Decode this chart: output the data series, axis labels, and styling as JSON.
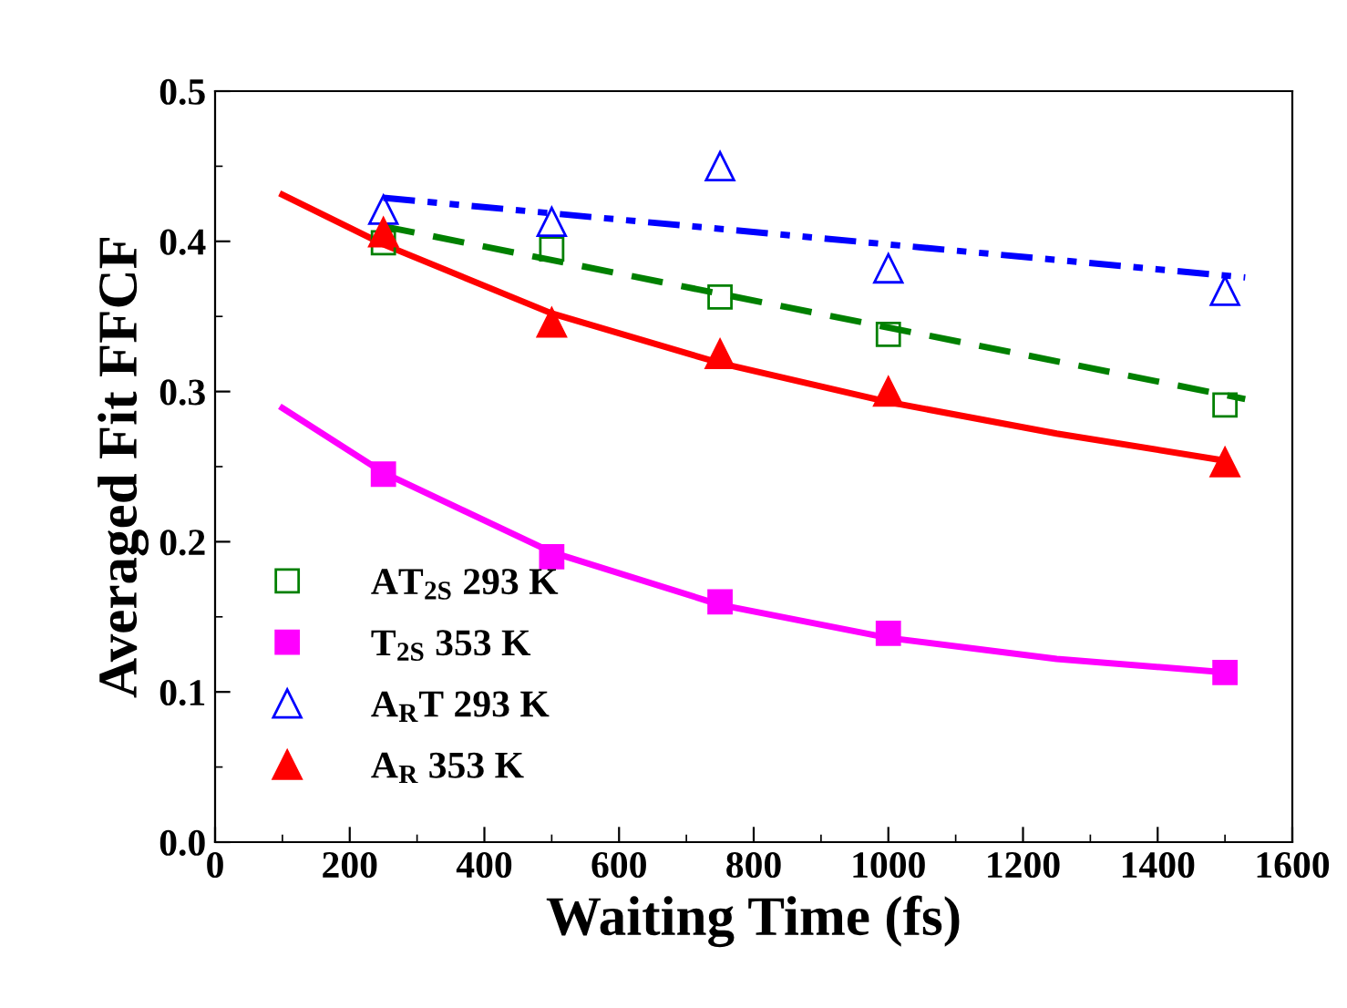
{
  "chart_data": {
    "type": "scatter",
    "xlabel": "Waiting Time (fs)",
    "ylabel": "Averaged Fit FFCF",
    "xlim": [
      0,
      1600
    ],
    "xticks": [
      0,
      200,
      400,
      600,
      800,
      1000,
      1200,
      1400,
      1600
    ],
    "ylim": [
      0.0,
      0.5
    ],
    "yticks": [
      {
        "value": 0.0,
        "label": "0.0"
      },
      0.1,
      0.2,
      0.3,
      0.4,
      0.5
    ],
    "grid": false,
    "legend": "left",
    "series": [
      {
        "name": "AT$_{2S}$ 293 K",
        "color": "#008000",
        "marker": "square-open",
        "x": [
          250,
          500,
          750,
          1000,
          1500
        ],
        "values": [
          0.399,
          0.395,
          0.363,
          0.338,
          0.291
        ]
      },
      {
        "name": "T$_{2S}$ 353 K",
        "color": "#ff00ff",
        "marker": "square",
        "x": [
          250,
          500,
          750,
          1000,
          1500
        ],
        "values": [
          0.245,
          0.19,
          0.16,
          0.139,
          0.113
        ]
      },
      {
        "name": "A$_{R}$T 293 K",
        "color": "#0000ff",
        "marker": "triangle-open",
        "x": [
          250,
          500,
          750,
          1000,
          1500
        ],
        "values": [
          0.421,
          0.413,
          0.45,
          0.382,
          0.367
        ]
      },
      {
        "name": "A$_{R}$ 353 K",
        "color": "#ff0000",
        "marker": "triangle",
        "x": [
          250,
          500,
          750,
          1000,
          1500
        ],
        "values": [
          0.406,
          0.346,
          0.325,
          0.3,
          0.253
        ]
      },
      {
        "type": "line",
        "color": "#008000",
        "line_style": "dashed",
        "x": [
          250,
          1530
        ],
        "values": [
          0.41,
          0.295
        ]
      },
      {
        "type": "line",
        "color": "#ff00ff",
        "line_style": "solid",
        "x": [
          100,
          250,
          500,
          750,
          1000,
          1250,
          1500
        ],
        "values": [
          0.289,
          0.246,
          0.193,
          0.158,
          0.136,
          0.122,
          0.113
        ]
      },
      {
        "type": "line",
        "color": "#0000ff",
        "line_style": "dotted",
        "x": [
          250,
          1530
        ],
        "values": [
          0.429,
          0.376
        ]
      },
      {
        "type": "line",
        "color": "#ff0000",
        "line_style": "solid",
        "x": [
          100,
          250,
          500,
          750,
          1000,
          1250,
          1500
        ],
        "values": [
          0.431,
          0.398,
          0.352,
          0.319,
          0.293,
          0.272,
          0.254
        ]
      }
    ]
  }
}
